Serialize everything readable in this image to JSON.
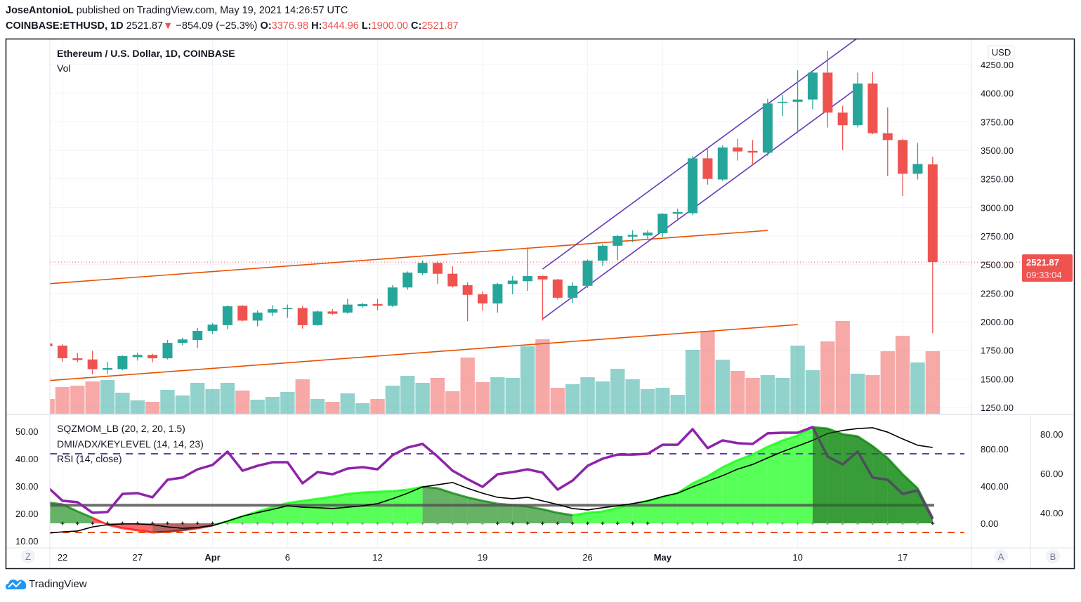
{
  "header": {
    "author": "JoseAntonioL",
    "published": "published on TradingView.com, May 19, 2021 14:26:57 UTC",
    "symbol": "COINBASE:ETHUSD, 1D",
    "last": "2521.87",
    "change": "−854.09 (−25.3%)",
    "o_label": "O:",
    "o": "3376.98",
    "h_label": "H:",
    "h": "3444.96",
    "l_label": "L:",
    "l": "1900.00",
    "c_label": "C:",
    "c": "2521.87"
  },
  "legend": {
    "main": "Ethereum / U.S. Dollar, 1D, COINBASE",
    "vol": "Vol",
    "sqz": "SQZMOM_LB (20, 2, 20, 1.5)",
    "dmi": "DMI/ADX/KEYLEVEL (14, 14, 23)",
    "rsi": "RSI (14, close)"
  },
  "footer": {
    "brand": "TradingView"
  },
  "colors": {
    "up": "#26a69a",
    "down": "#ef5350",
    "trend": "#e65100",
    "channel": "#673ab7",
    "rsi": "#8e24aa",
    "adx": "#000000",
    "lime": "#00ff00",
    "green": "#008000",
    "red": "#ff0000",
    "maroon": "#800000"
  },
  "chart_data": [
    {
      "type": "candlestick",
      "currency_label": "USD",
      "yticks": [
        "4250.00",
        "4000.00",
        "3750.00",
        "3500.00",
        "3250.00",
        "3000.00",
        "2750.00",
        "2500.00",
        "2250.00",
        "2000.00",
        "1750.00",
        "1500.00",
        "1250.00"
      ],
      "ylim": [
        1250,
        4250
      ],
      "last_price_label": "2521.87",
      "countdown_label": "09:33:04",
      "xticks": [
        {
          "date": "2021-03-22",
          "label": "22"
        },
        {
          "date": "2021-03-27",
          "label": "27"
        },
        {
          "date": "2021-04-01",
          "label": "Apr",
          "bold": true
        },
        {
          "date": "2021-04-06",
          "label": "6"
        },
        {
          "date": "2021-04-12",
          "label": "12"
        },
        {
          "date": "2021-04-19",
          "label": "19"
        },
        {
          "date": "2021-04-26",
          "label": "26"
        },
        {
          "date": "2021-05-01",
          "label": "May",
          "bold": true
        },
        {
          "date": "2021-05-10",
          "label": "10"
        },
        {
          "date": "2021-05-17",
          "label": "17"
        }
      ],
      "columns": [
        "date",
        "open",
        "high",
        "low",
        "close",
        "volume_relative"
      ],
      "candles": [
        [
          "2021-03-21",
          1810,
          1820,
          1780,
          1785,
          21
        ],
        [
          "2021-03-22",
          1791,
          1803,
          1650,
          1681,
          38
        ],
        [
          "2021-03-23",
          1680,
          1725,
          1645,
          1665,
          40
        ],
        [
          "2021-03-24",
          1670,
          1745,
          1540,
          1585,
          46
        ],
        [
          "2021-03-25",
          1580,
          1650,
          1545,
          1595,
          48
        ],
        [
          "2021-03-26",
          1585,
          1705,
          1575,
          1700,
          30
        ],
        [
          "2021-03-27",
          1690,
          1730,
          1660,
          1710,
          19
        ],
        [
          "2021-03-28",
          1710,
          1720,
          1645,
          1680,
          17
        ],
        [
          "2021-03-29",
          1680,
          1840,
          1670,
          1815,
          34
        ],
        [
          "2021-03-30",
          1815,
          1860,
          1795,
          1845,
          26
        ],
        [
          "2021-03-31",
          1840,
          1945,
          1770,
          1920,
          44
        ],
        [
          "2021-04-01",
          1920,
          1990,
          1895,
          1975,
          35
        ],
        [
          "2021-04-02",
          1970,
          2145,
          1935,
          2135,
          44
        ],
        [
          "2021-04-03",
          2140,
          2145,
          2005,
          2010,
          33
        ],
        [
          "2021-04-04",
          2010,
          2100,
          1960,
          2080,
          20
        ],
        [
          "2021-04-05",
          2080,
          2145,
          2050,
          2110,
          24
        ],
        [
          "2021-04-06",
          2110,
          2150,
          2035,
          2120,
          31
        ],
        [
          "2021-04-07",
          2120,
          2140,
          1940,
          1970,
          49
        ],
        [
          "2021-04-08",
          1970,
          2100,
          1965,
          2090,
          21
        ],
        [
          "2021-04-09",
          2090,
          2110,
          2060,
          2070,
          17
        ],
        [
          "2021-04-10",
          2080,
          2200,
          2070,
          2150,
          29
        ],
        [
          "2021-04-11",
          2135,
          2165,
          2125,
          2155,
          15
        ],
        [
          "2021-04-12",
          2155,
          2200,
          2100,
          2140,
          21
        ],
        [
          "2021-04-13",
          2140,
          2320,
          2130,
          2300,
          40
        ],
        [
          "2021-04-14",
          2300,
          2440,
          2280,
          2430,
          54
        ],
        [
          "2021-04-15",
          2425,
          2535,
          2410,
          2515,
          44
        ],
        [
          "2021-04-16",
          2515,
          2530,
          2330,
          2420,
          51
        ],
        [
          "2021-04-17",
          2420,
          2485,
          2300,
          2310,
          32
        ],
        [
          "2021-04-18",
          2320,
          2345,
          2005,
          2235,
          80
        ],
        [
          "2021-04-19",
          2240,
          2265,
          2095,
          2160,
          45
        ],
        [
          "2021-04-20",
          2160,
          2340,
          2080,
          2330,
          52
        ],
        [
          "2021-04-21",
          2330,
          2400,
          2240,
          2360,
          51
        ],
        [
          "2021-04-22",
          2355,
          2650,
          2270,
          2400,
          96
        ],
        [
          "2021-04-23",
          2400,
          2405,
          2010,
          2370,
          106
        ],
        [
          "2021-04-24",
          2370,
          2375,
          2195,
          2210,
          37
        ],
        [
          "2021-04-25",
          2210,
          2345,
          2165,
          2315,
          42
        ],
        [
          "2021-04-26",
          2315,
          2545,
          2295,
          2535,
          52
        ],
        [
          "2021-04-27",
          2535,
          2680,
          2490,
          2665,
          46
        ],
        [
          "2021-04-28",
          2665,
          2760,
          2540,
          2750,
          64
        ],
        [
          "2021-04-29",
          2745,
          2800,
          2695,
          2760,
          49
        ],
        [
          "2021-04-30",
          2755,
          2800,
          2720,
          2780,
          35
        ],
        [
          "2021-05-01",
          2775,
          2950,
          2745,
          2945,
          37
        ],
        [
          "2021-05-02",
          2945,
          2990,
          2880,
          2960,
          27
        ],
        [
          "2021-05-03",
          2950,
          3450,
          2935,
          3430,
          91
        ],
        [
          "2021-05-04",
          3430,
          3525,
          3200,
          3250,
          118
        ],
        [
          "2021-05-05",
          3245,
          3545,
          3230,
          3525,
          77
        ],
        [
          "2021-05-06",
          3525,
          3600,
          3410,
          3490,
          61
        ],
        [
          "2021-05-07",
          3495,
          3590,
          3370,
          3480,
          51
        ],
        [
          "2021-05-08",
          3480,
          3950,
          3450,
          3910,
          55
        ],
        [
          "2021-05-09",
          3915,
          3985,
          3800,
          3925,
          51
        ],
        [
          "2021-05-10",
          3925,
          4200,
          3650,
          3945,
          97
        ],
        [
          "2021-05-11",
          3945,
          4185,
          3860,
          4180,
          62
        ],
        [
          "2021-05-12",
          4180,
          4370,
          3700,
          3830,
          103
        ],
        [
          "2021-05-13",
          3830,
          3890,
          3500,
          3720,
          132
        ],
        [
          "2021-05-14",
          3720,
          4180,
          3700,
          4085,
          57
        ],
        [
          "2021-05-15",
          4085,
          4185,
          3640,
          3650,
          55
        ],
        [
          "2021-05-16",
          3650,
          3875,
          3275,
          3590,
          89
        ],
        [
          "2021-05-17",
          3590,
          3600,
          3100,
          3295,
          111
        ],
        [
          "2021-05-18",
          3295,
          3565,
          3245,
          3380,
          73
        ],
        [
          "2021-05-19",
          3377,
          3445,
          1900,
          2522,
          89
        ]
      ],
      "trendlines": [
        {
          "color": "trend",
          "from": [
            "2021-03-21",
            2332
          ],
          "to": [
            "2021-05-08",
            2799
          ]
        },
        {
          "color": "trend",
          "from": [
            "2021-03-21",
            1484
          ],
          "to": [
            "2021-05-10",
            1975
          ]
        },
        {
          "color": "channel",
          "from": [
            "2021-04-23",
            2461
          ],
          "to": [
            "2021-05-14",
            4483
          ]
        },
        {
          "color": "channel",
          "from": [
            "2021-04-23",
            2025
          ],
          "to": [
            "2021-05-14",
            4047
          ]
        }
      ]
    },
    {
      "type": "line",
      "left_axis": {
        "ticks": [
          "50.00",
          "40.00",
          "30.00",
          "20.00",
          "10.00"
        ],
        "values": [
          50,
          40,
          30,
          20,
          10
        ]
      },
      "axis_a": {
        "label": "A",
        "ticks": [
          "800.00",
          "400.00",
          "0.00"
        ],
        "values": [
          800,
          400,
          0
        ]
      },
      "axis_b": {
        "label": "B",
        "ticks": [
          "80.00",
          "60.00",
          "40.00"
        ],
        "values": [
          80,
          60,
          40
        ]
      },
      "z_button": "Z",
      "keylevel": 23,
      "rsi_levels": [
        70,
        30
      ],
      "squeeze_momentum": [
        226,
        204,
        128,
        60,
        -15,
        -53,
        -75,
        -98,
        -91,
        -75,
        -53,
        -23,
        23,
        75,
        128,
        174,
        219,
        242,
        264,
        287,
        317,
        332,
        340,
        347,
        362,
        392,
        377,
        325,
        279,
        242,
        211,
        196,
        181,
        151,
        113,
        88,
        113,
        128,
        166,
        204,
        242,
        279,
        325,
        430,
        506,
        604,
        679,
        740,
        823,
        891,
        943,
        1034,
        1019,
        958,
        936,
        830,
        702,
        528,
        377,
        60
      ],
      "squeeze_on": [
        1,
        1,
        1,
        1,
        1,
        1,
        1,
        1,
        1,
        1,
        1,
        1,
        0,
        0,
        0,
        0,
        0,
        0,
        0,
        0,
        0,
        0,
        0,
        0,
        0,
        0,
        0,
        0,
        0,
        0,
        1,
        1,
        1,
        1,
        1,
        1,
        1,
        1,
        1,
        1,
        1,
        0,
        0,
        0,
        0,
        0,
        0,
        0,
        0,
        0,
        0,
        0,
        0,
        0,
        0,
        0,
        0,
        0,
        0,
        1
      ],
      "adx": [
        12.8,
        13.3,
        13.6,
        15.1,
        15.9,
        16.2,
        16.2,
        15.9,
        15.1,
        14.6,
        14.9,
        15.6,
        17.2,
        19.0,
        20.3,
        21.5,
        22.8,
        22.3,
        22.1,
        21.8,
        22.3,
        22.8,
        23.6,
        25.4,
        27.4,
        29.7,
        30.5,
        31.3,
        29.2,
        27.4,
        25.9,
        25.4,
        25.9,
        24.6,
        23.3,
        21.8,
        21.3,
        22.1,
        22.8,
        23.6,
        24.6,
        26.2,
        27.4,
        29.7,
        31.8,
        33.8,
        36.2,
        37.9,
        40.3,
        42.6,
        44.6,
        46.7,
        49.2,
        50.3,
        51.0,
        51.3,
        49.7,
        47.2,
        44.9,
        44.1
      ],
      "rsi": [
        53.2,
        46.1,
        45.4,
        40.0,
        40.4,
        49.6,
        50.0,
        47.9,
        56.8,
        57.9,
        62.1,
        64.3,
        71.1,
        61.4,
        63.9,
        65.7,
        65.7,
        55.0,
        60.7,
        59.6,
        62.5,
        63.2,
        62.1,
        69.3,
        73.2,
        75.0,
        68.6,
        61.4,
        57.1,
        53.2,
        59.6,
        60.7,
        62.1,
        60.4,
        51.8,
        56.4,
        63.9,
        67.5,
        69.6,
        69.6,
        70.0,
        74.6,
        74.6,
        82.5,
        72.9,
        76.8,
        75.4,
        75.0,
        80.4,
        80.7,
        80.7,
        83.6,
        68.6,
        64.6,
        71.1,
        57.9,
        56.8,
        49.6,
        51.4,
        36.8
      ]
    }
  ]
}
